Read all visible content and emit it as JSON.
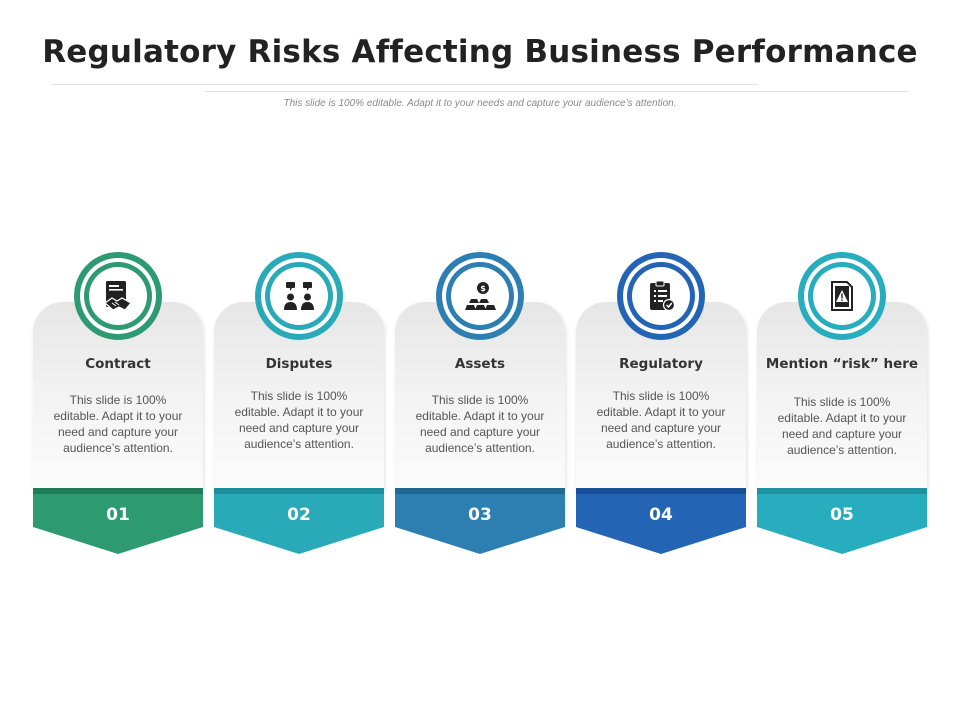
{
  "title": "Regulatory Risks Affecting Business Performance",
  "subtitle": "This slide is 100% editable. Adapt it to your needs and capture your audience’s attention.",
  "cards": [
    {
      "label": "Contract",
      "description": "This slide is 100% editable. Adapt it to your need and capture your audience’s attention.",
      "number": "01",
      "icon": "contract-handshake-icon",
      "color": "#2e9a72",
      "band_color": "#1f7d5b"
    },
    {
      "label": "Disputes",
      "description": "This slide is 100% editable. Adapt it to your need and capture your audience’s attention.",
      "number": "02",
      "icon": "dispute-people-icon",
      "color": "#2aaab8",
      "band_color": "#1d8f9c"
    },
    {
      "label": "Assets",
      "description": "This slide is 100% editable. Adapt it to your need and capture your audience’s attention.",
      "number": "03",
      "icon": "gold-bars-icon",
      "color": "#2d7fb2",
      "band_color": "#1f6894"
    },
    {
      "label": "Regulatory",
      "description": "This slide is 100% editable. Adapt it to your need and capture your audience’s attention.",
      "number": "04",
      "icon": "clipboard-check-icon",
      "color": "#2464b4",
      "band_color": "#174f98"
    },
    {
      "label": "Mention “risk” here",
      "description": "This slide is 100% editable. Adapt it to your need and capture your audience’s attention.",
      "number": "05",
      "icon": "document-warning-icon",
      "color": "#27adbd",
      "band_color": "#1d93a1"
    }
  ]
}
